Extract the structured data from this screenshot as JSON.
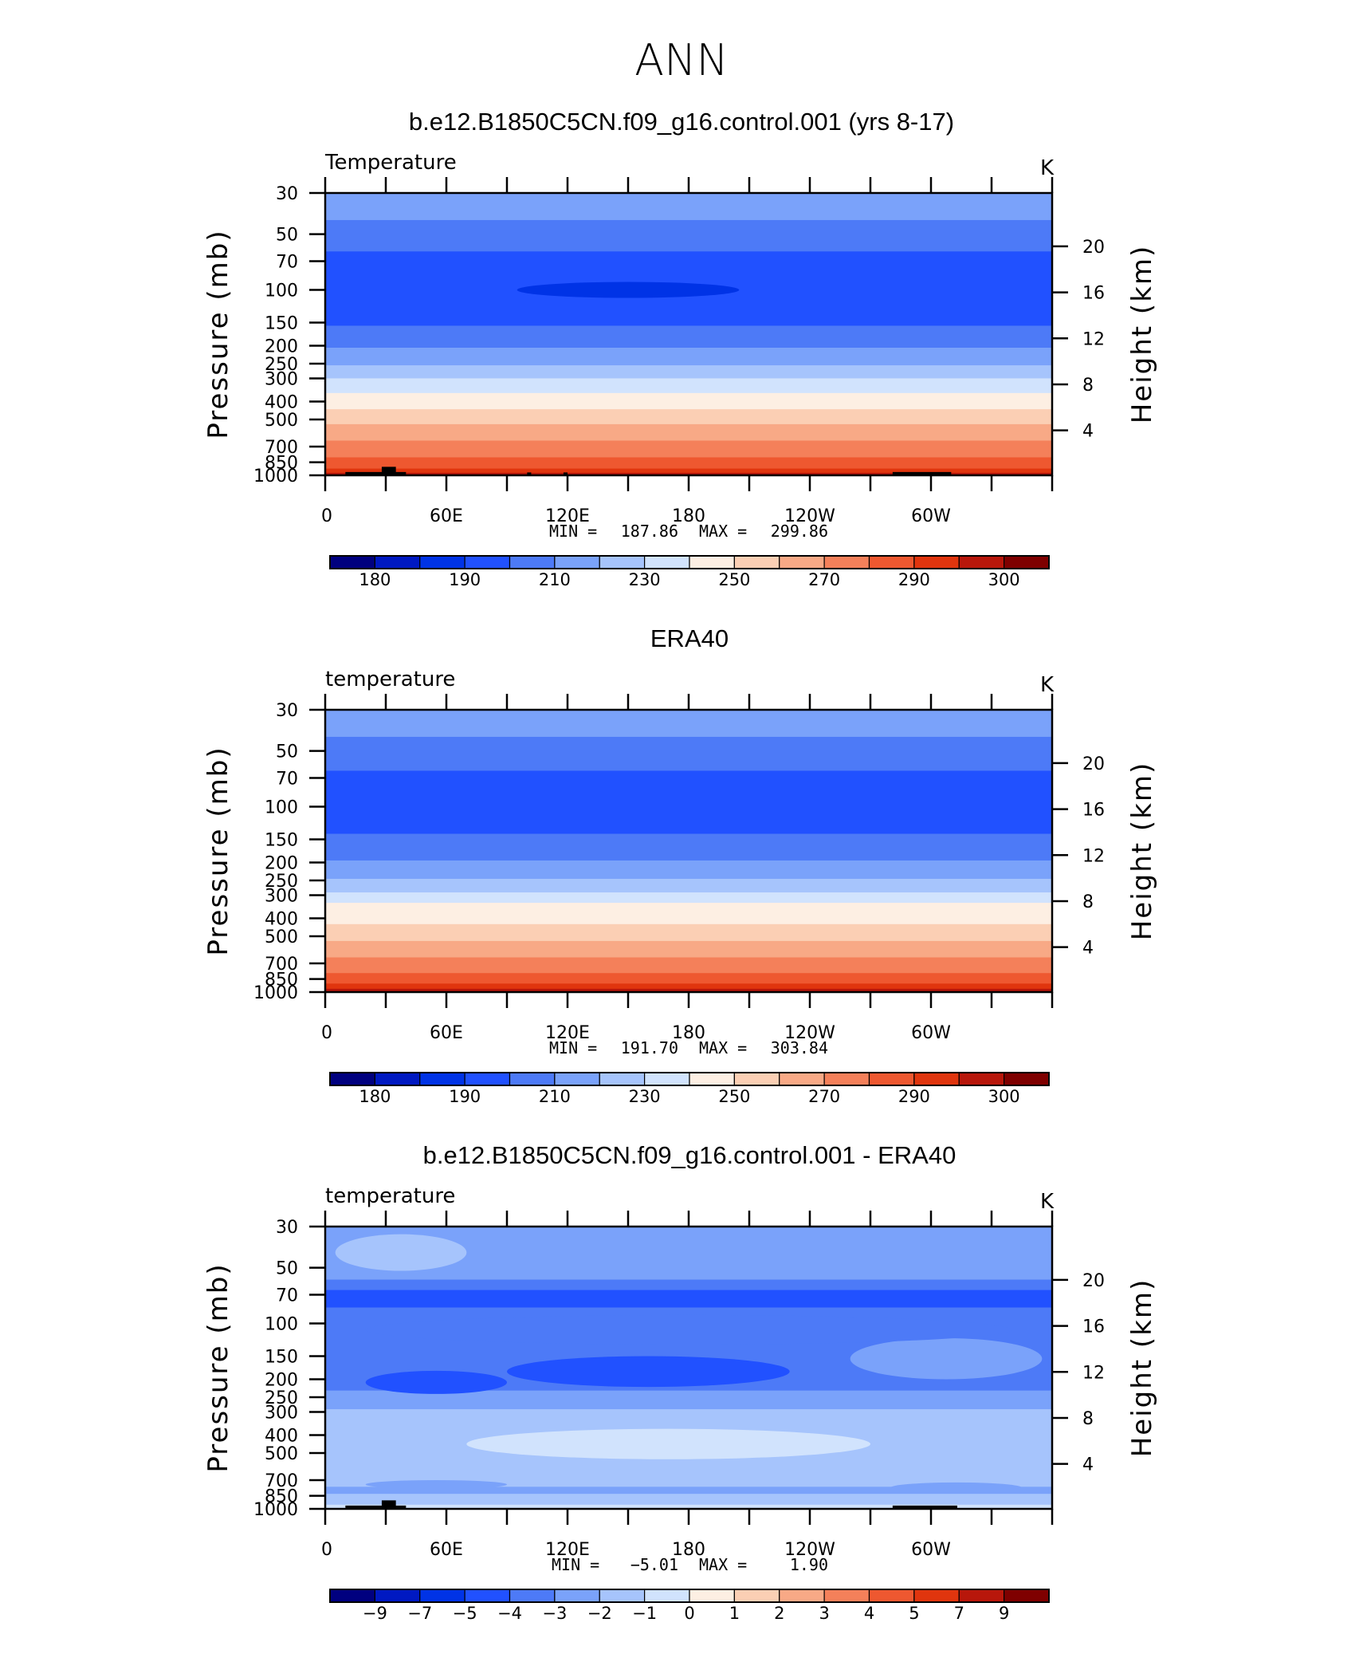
{
  "figure_title": "ANN",
  "palette": [
    "#00007f",
    "#0019c2",
    "#0033e6",
    "#2151ff",
    "#4d7af7",
    "#7aa2fa",
    "#a6c4fc",
    "#d1e3fd",
    "#fdefe3",
    "#fbcfb4",
    "#f8a986",
    "#f4805a",
    "#ee5830",
    "#e0350e",
    "#b8170b",
    "#7f0000"
  ],
  "land_color": "#000000",
  "chart_data": [
    {
      "type": "heatmap",
      "title": "b.e12.B1850C5CN.f09_g16.control.001 (yrs 8-17)",
      "left_label": "Temperature",
      "units": "K",
      "ylabel": "Pressure (mb)",
      "ylabel_right": "Height (km)",
      "xticks": [
        "0",
        "60E",
        "120E",
        "180",
        "120W",
        "60W"
      ],
      "yticks": [
        "30",
        "50",
        "70",
        "100",
        "150",
        "200",
        "250",
        "300",
        "400",
        "500",
        "700",
        "850",
        "1000"
      ],
      "yticks_right": [
        "20",
        "16",
        "12",
        "8",
        "4"
      ],
      "stats": {
        "min_label": "MIN =",
        "min": "187.86",
        "max_label": "MAX =",
        "max": "299.86"
      },
      "colorbar_labels": [
        "180",
        "190",
        "210",
        "230",
        "250",
        "270",
        "290",
        "300"
      ],
      "bands": [
        {
          "p": 30,
          "color_index": 5
        },
        {
          "p": 42,
          "color_index": 4
        },
        {
          "p": 62,
          "color_index": 3
        },
        {
          "p": 156,
          "color_index": 4
        },
        {
          "p": 205,
          "color_index": 5
        },
        {
          "p": 255,
          "color_index": 6
        },
        {
          "p": 300,
          "color_index": 7
        },
        {
          "p": 360,
          "color_index": 8
        },
        {
          "p": 440,
          "color_index": 9
        },
        {
          "p": 530,
          "color_index": 10
        },
        {
          "p": 650,
          "color_index": 11
        },
        {
          "p": 800,
          "color_index": 12
        },
        {
          "p": 920,
          "color_index": 13
        },
        {
          "p": 970,
          "color_index": 14
        }
      ],
      "cold_core": {
        "lon_center": 150,
        "lon_halfwidth": 55,
        "p_center": 100,
        "color_index": 2
      },
      "land_blocks": [
        {
          "lon0": 10,
          "lon1": 40,
          "p_top": 960
        },
        {
          "lon0": 28,
          "lon1": 35,
          "p_top": 900
        },
        {
          "lon0": 100,
          "lon1": 102,
          "p_top": 965
        },
        {
          "lon0": 118,
          "lon1": 120,
          "p_top": 965
        },
        {
          "lon0": 281,
          "lon1": 310,
          "p_top": 960
        }
      ]
    },
    {
      "type": "heatmap",
      "title": "ERA40",
      "left_label": "temperature",
      "units": "K",
      "ylabel": "Pressure (mb)",
      "ylabel_right": "Height (km)",
      "xticks": [
        "0",
        "60E",
        "120E",
        "180",
        "120W",
        "60W"
      ],
      "yticks": [
        "30",
        "50",
        "70",
        "100",
        "150",
        "200",
        "250",
        "300",
        "400",
        "500",
        "700",
        "850",
        "1000"
      ],
      "yticks_right": [
        "20",
        "16",
        "12",
        "8",
        "4"
      ],
      "stats": {
        "min_label": "MIN =",
        "min": "191.70",
        "max_label": "MAX =",
        "max": "303.84"
      },
      "colorbar_labels": [
        "180",
        "190",
        "210",
        "230",
        "250",
        "270",
        "290",
        "300"
      ],
      "bands": [
        {
          "p": 30,
          "color_index": 5
        },
        {
          "p": 42,
          "color_index": 4
        },
        {
          "p": 64,
          "color_index": 3
        },
        {
          "p": 140,
          "color_index": 4
        },
        {
          "p": 195,
          "color_index": 5
        },
        {
          "p": 245,
          "color_index": 6
        },
        {
          "p": 290,
          "color_index": 7
        },
        {
          "p": 330,
          "color_index": 8
        },
        {
          "p": 430,
          "color_index": 9
        },
        {
          "p": 530,
          "color_index": 10
        },
        {
          "p": 650,
          "color_index": 11
        },
        {
          "p": 790,
          "color_index": 12
        },
        {
          "p": 900,
          "color_index": 13
        },
        {
          "p": 960,
          "color_index": 14
        }
      ],
      "cold_core": null,
      "land_blocks": []
    },
    {
      "type": "heatmap",
      "title": "b.e12.B1850C5CN.f09_g16.control.001 - ERA40",
      "left_label": "temperature",
      "units": "K",
      "ylabel": "Pressure (mb)",
      "ylabel_right": "Height (km)",
      "xticks": [
        "0",
        "60E",
        "120E",
        "180",
        "120W",
        "60W"
      ],
      "yticks": [
        "30",
        "50",
        "70",
        "100",
        "150",
        "200",
        "250",
        "300",
        "400",
        "500",
        "700",
        "850",
        "1000"
      ],
      "yticks_right": [
        "20",
        "16",
        "12",
        "8",
        "4"
      ],
      "stats": {
        "min_label": "MIN =",
        "min": "−5.01",
        "max_label": "MAX =",
        "max": "1.90"
      },
      "colorbar_labels": [
        "−9",
        "−7",
        "−5",
        "−4",
        "−3",
        "−2",
        "−1",
        "0",
        "1",
        "2",
        "3",
        "4",
        "5",
        "7",
        "9"
      ],
      "bands": [
        {
          "p": 30,
          "color_index": 5
        },
        {
          "p": 58,
          "color_index": 4
        },
        {
          "p": 66,
          "color_index": 3
        },
        {
          "p": 82,
          "color_index": 4
        },
        {
          "p": 118,
          "color_index": 4
        },
        {
          "p": 180,
          "color_index": 4
        },
        {
          "p": 230,
          "color_index": 5
        },
        {
          "p": 290,
          "color_index": 6
        },
        {
          "p": 660,
          "color_index": 6
        },
        {
          "p": 760,
          "color_index": 5
        },
        {
          "p": 830,
          "color_index": 6
        },
        {
          "p": 950,
          "color_index": 7
        }
      ],
      "cold_core": null,
      "patches": [
        {
          "lon0": 5,
          "lon1": 70,
          "p0": 33,
          "p1": 52,
          "color_index": 6
        },
        {
          "lon0": 90,
          "lon1": 230,
          "p0": 150,
          "p1": 220,
          "color_index": 3
        },
        {
          "lon0": 260,
          "lon1": 355,
          "p0": 120,
          "p1": 200,
          "color_index": 5
        },
        {
          "lon0": 20,
          "lon1": 340,
          "p0": 90,
          "p1": 130,
          "color_index": 4
        },
        {
          "lon0": 20,
          "lon1": 90,
          "p0": 180,
          "p1": 240,
          "color_index": 3
        },
        {
          "lon0": 70,
          "lon1": 270,
          "p0": 370,
          "p1": 540,
          "color_index": 7
        },
        {
          "lon0": 20,
          "lon1": 90,
          "p0": 700,
          "p1": 780,
          "color_index": 5
        },
        {
          "lon0": 280,
          "lon1": 345,
          "p0": 720,
          "p1": 820,
          "color_index": 5
        }
      ],
      "land_blocks": [
        {
          "lon0": 10,
          "lon1": 40,
          "p_top": 960
        },
        {
          "lon0": 28,
          "lon1": 35,
          "p_top": 900
        },
        {
          "lon0": 281,
          "lon1": 313,
          "p_top": 960
        }
      ]
    }
  ]
}
